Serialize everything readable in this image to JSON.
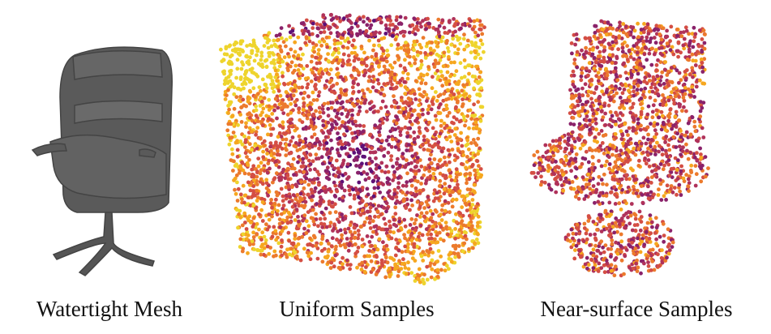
{
  "figure": {
    "captions": [
      "Watertight Mesh",
      "Uniform Samples",
      "Near-surface Samples"
    ]
  }
}
